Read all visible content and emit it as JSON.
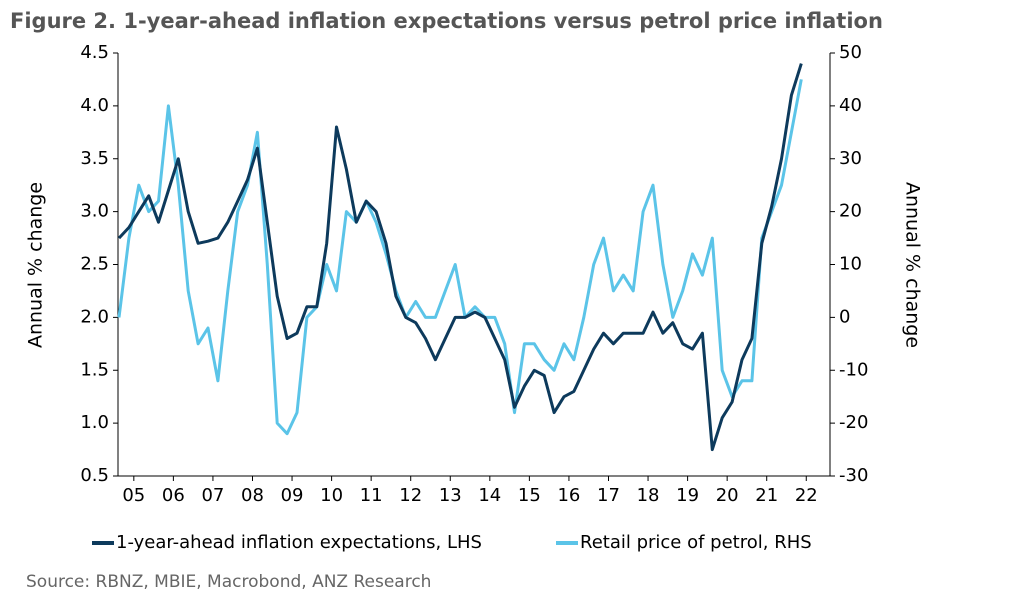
{
  "chart_data": {
    "type": "line",
    "title": "Figure 2.  1-year-ahead inflation expectations versus petrol price inflation",
    "source": "Source: RBNZ, MBIE, Macrobond, ANZ Research",
    "y_label": "Annual % change",
    "y2_label": "Annual % change",
    "x": [
      2005.125,
      2005.375,
      2005.625,
      2005.875,
      2006.125,
      2006.375,
      2006.625,
      2006.875,
      2007.125,
      2007.375,
      2007.625,
      2007.875,
      2008.125,
      2008.375,
      2008.625,
      2008.875,
      2009.125,
      2009.375,
      2009.625,
      2009.875,
      2010.125,
      2010.375,
      2010.625,
      2010.875,
      2011.125,
      2011.375,
      2011.625,
      2011.875,
      2012.125,
      2012.375,
      2012.625,
      2012.875,
      2013.125,
      2013.375,
      2013.625,
      2013.875,
      2014.125,
      2014.375,
      2014.625,
      2014.875,
      2015.125,
      2015.375,
      2015.625,
      2015.875,
      2016.125,
      2016.375,
      2016.625,
      2016.875,
      2017.125,
      2017.375,
      2017.625,
      2017.875,
      2018.125,
      2018.375,
      2018.625,
      2018.875,
      2019.125,
      2019.375,
      2019.625,
      2019.875,
      2020.125,
      2020.375,
      2020.625,
      2020.875,
      2021.125,
      2021.375,
      2021.625,
      2021.875,
      2022.125,
      2022.375
    ],
    "xlim": [
      2005.1,
      2023.1
    ],
    "xticks": [
      {
        "value": 2005.5,
        "label": "05"
      },
      {
        "value": 2006.5,
        "label": "06"
      },
      {
        "value": 2007.5,
        "label": "07"
      },
      {
        "value": 2008.5,
        "label": "08"
      },
      {
        "value": 2009.5,
        "label": "09"
      },
      {
        "value": 2010.5,
        "label": "10"
      },
      {
        "value": 2011.5,
        "label": "11"
      },
      {
        "value": 2012.5,
        "label": "12"
      },
      {
        "value": 2013.5,
        "label": "13"
      },
      {
        "value": 2014.5,
        "label": "14"
      },
      {
        "value": 2015.5,
        "label": "15"
      },
      {
        "value": 2016.5,
        "label": "16"
      },
      {
        "value": 2017.5,
        "label": "17"
      },
      {
        "value": 2018.5,
        "label": "18"
      },
      {
        "value": 2019.5,
        "label": "19"
      },
      {
        "value": 2020.5,
        "label": "20"
      },
      {
        "value": 2021.5,
        "label": "21"
      },
      {
        "value": 2022.5,
        "label": "22"
      }
    ],
    "ylim": [
      0.5,
      4.5
    ],
    "yticks": [
      {
        "value": 0.5,
        "label": "0.5"
      },
      {
        "value": 1,
        "label": "1.0"
      },
      {
        "value": 1.5,
        "label": "1.5"
      },
      {
        "value": 2,
        "label": "2.0"
      },
      {
        "value": 2.5,
        "label": "2.5"
      },
      {
        "value": 3,
        "label": "3.0"
      },
      {
        "value": 3.5,
        "label": "3.5"
      },
      {
        "value": 4,
        "label": "4.0"
      },
      {
        "value": 4.5,
        "label": "4.5"
      }
    ],
    "y2lim": [
      -30,
      50
    ],
    "y2ticks": [
      -30,
      -20,
      -10,
      0,
      10,
      20,
      30,
      40,
      50
    ],
    "series": [
      {
        "name": "1-year-ahead inflation expectations, LHS",
        "color": "#0d3a5c",
        "axis": "y",
        "values": [
          2.75,
          2.85,
          3.0,
          3.15,
          2.9,
          3.2,
          3.5,
          3.0,
          2.7,
          2.72,
          2.75,
          2.9,
          3.1,
          3.3,
          3.6,
          2.9,
          2.2,
          1.8,
          1.85,
          2.1,
          2.1,
          2.7,
          3.8,
          3.4,
          2.9,
          3.1,
          3.0,
          2.7,
          2.2,
          2.0,
          1.95,
          1.8,
          1.6,
          1.8,
          2.0,
          2.0,
          2.05,
          2.0,
          1.8,
          1.6,
          1.15,
          1.35,
          1.5,
          1.45,
          1.1,
          1.25,
          1.3,
          1.5,
          1.7,
          1.85,
          1.75,
          1.85,
          1.85,
          1.85,
          2.05,
          1.85,
          1.95,
          1.75,
          1.7,
          1.85,
          0.75,
          1.05,
          1.2,
          1.6,
          1.8,
          2.7,
          3.05,
          3.5,
          4.1,
          4.4
        ]
      },
      {
        "name": "Retail price of petrol, RHS",
        "color": "#5bc4e8",
        "axis": "y2",
        "values": [
          0,
          15,
          25,
          20,
          22,
          40,
          25,
          5,
          -5,
          -2,
          -12,
          5,
          20,
          25,
          35,
          10,
          -20,
          -22,
          -18,
          0,
          2,
          10,
          5,
          20,
          18,
          22,
          18,
          12,
          5,
          0,
          3,
          0,
          0,
          5,
          10,
          0,
          2,
          0,
          0,
          -5,
          -18,
          -5,
          -5,
          -8,
          -10,
          -5,
          -8,
          0,
          10,
          15,
          5,
          8,
          5,
          20,
          25,
          10,
          0,
          5,
          12,
          8,
          15,
          -10,
          -15,
          -12,
          -12,
          15,
          20,
          25,
          35,
          45
        ]
      }
    ]
  }
}
